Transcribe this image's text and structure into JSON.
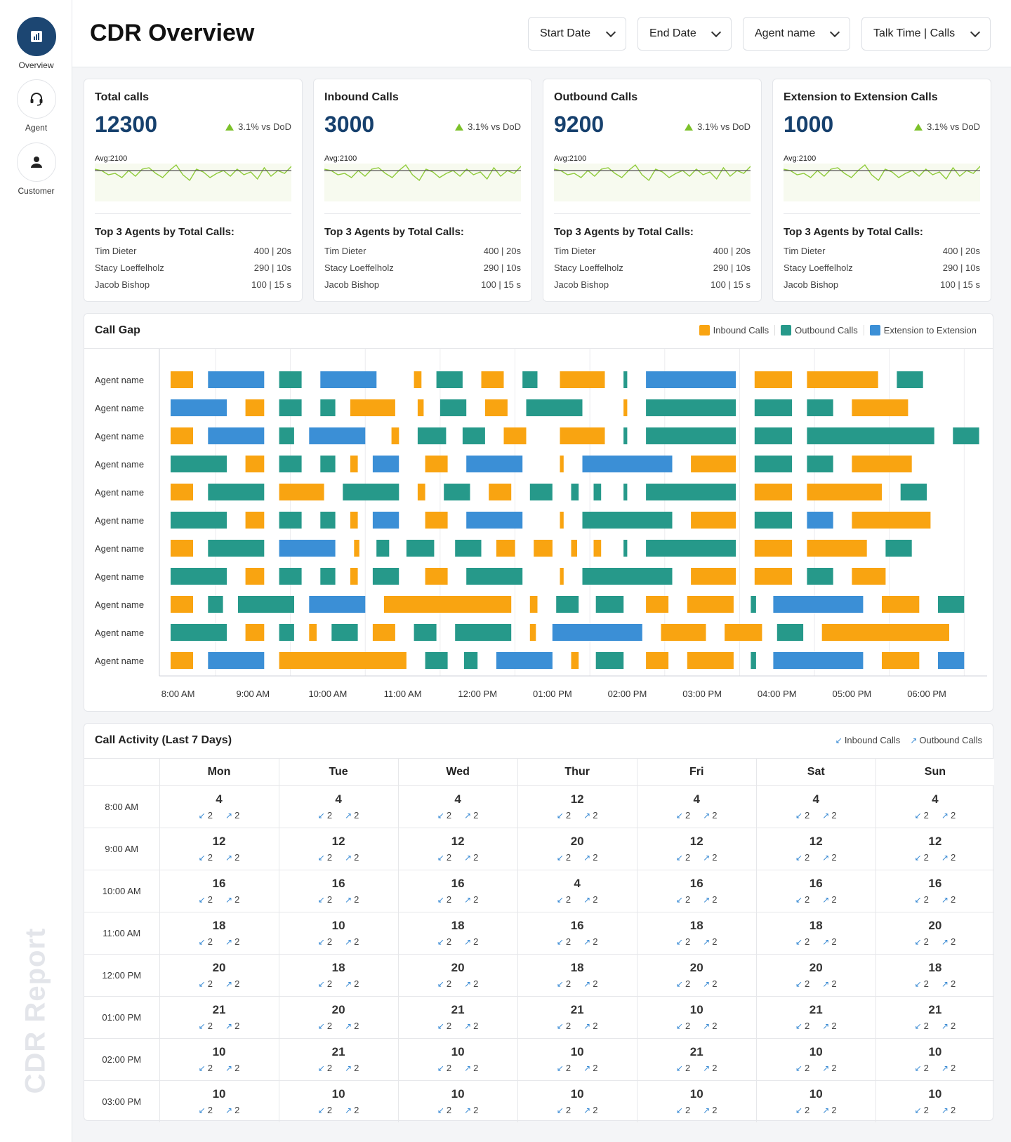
{
  "sidebar": {
    "items": [
      {
        "label": "Overview",
        "icon": "chart-icon",
        "active": true
      },
      {
        "label": "Agent",
        "icon": "headset-icon",
        "active": false
      },
      {
        "label": "Customer",
        "icon": "user-icon",
        "active": false
      }
    ],
    "brand": "CDR Report"
  },
  "header": {
    "title": "CDR Overview",
    "filters": [
      "Start Date",
      "End Date",
      "Agent name",
      "Talk Time | Calls"
    ]
  },
  "kpis": [
    {
      "title": "Total calls",
      "value": "12300",
      "delta": "3.1% vs DoD",
      "avg": "Avg:2100",
      "top3_title": "Top 3 Agents by Total Calls:",
      "agents": [
        {
          "name": "Tim Dieter",
          "stat": "400 | 20s"
        },
        {
          "name": "Stacy Loeffelholz",
          "stat": "290 | 10s"
        },
        {
          "name": "Jacob Bishop",
          "stat": "100 | 15 s"
        }
      ]
    },
    {
      "title": "Inbound Calls",
      "value": "3000",
      "delta": "3.1% vs DoD",
      "avg": "Avg:2100",
      "top3_title": "Top 3 Agents by Total Calls:",
      "agents": [
        {
          "name": "Tim Dieter",
          "stat": "400 | 20s"
        },
        {
          "name": "Stacy Loeffelholz",
          "stat": "290 | 10s"
        },
        {
          "name": "Jacob Bishop",
          "stat": "100 | 15 s"
        }
      ]
    },
    {
      "title": "Outbound Calls",
      "value": "9200",
      "delta": "3.1% vs DoD",
      "avg": "Avg:2100",
      "top3_title": "Top 3 Agents by Total Calls:",
      "agents": [
        {
          "name": "Tim Dieter",
          "stat": "400 | 20s"
        },
        {
          "name": "Stacy Loeffelholz",
          "stat": "290 | 10s"
        },
        {
          "name": "Jacob Bishop",
          "stat": "100 | 15 s"
        }
      ]
    },
    {
      "title": "Extension to Extension Calls",
      "value": "1000",
      "delta": "3.1% vs DoD",
      "avg": "Avg:2100",
      "top3_title": "Top 3 Agents by Total Calls:",
      "agents": [
        {
          "name": "Tim Dieter",
          "stat": "400 | 20s"
        },
        {
          "name": "Stacy Loeffelholz",
          "stat": "290 | 10s"
        },
        {
          "name": "Jacob Bishop",
          "stat": "100 | 15 s"
        }
      ]
    }
  ],
  "colors": {
    "inbound": "#f9a411",
    "outbound": "#26998a",
    "extension": "#3b8fd6",
    "accent": "#16406d",
    "spark": "#8fcb3a"
  },
  "call_gap": {
    "title": "Call Gap",
    "legend": [
      "Inbound Calls",
      "Outbound Calls",
      "Extension to Extension"
    ]
  },
  "chart_data": {
    "type": "gantt",
    "x_ticks": [
      "8:00 AM",
      "9:00 AM",
      "10:00 AM",
      "11:00 AM",
      "12:00 PM",
      "01:00 PM",
      "02:00 PM",
      "03:00 PM",
      "04:00 PM",
      "05:00 PM",
      "06:00 PM"
    ],
    "x_range_hours": [
      7.75,
      18.75
    ],
    "rows": [
      {
        "label": "Agent name",
        "segments": [
          [
            7.9,
            8.2,
            "inbound"
          ],
          [
            8.4,
            9.15,
            "extension"
          ],
          [
            9.35,
            9.65,
            "outbound"
          ],
          [
            9.9,
            10.65,
            "extension"
          ],
          [
            11.15,
            11.25,
            "inbound"
          ],
          [
            11.45,
            11.8,
            "outbound"
          ],
          [
            12.05,
            12.35,
            "inbound"
          ],
          [
            12.6,
            12.8,
            "outbound"
          ],
          [
            13.1,
            13.7,
            "inbound"
          ],
          [
            13.95,
            14.0,
            "outbound"
          ],
          [
            14.25,
            15.45,
            "extension"
          ],
          [
            15.7,
            16.2,
            "inbound"
          ],
          [
            16.4,
            17.35,
            "inbound"
          ],
          [
            17.6,
            17.95,
            "outbound"
          ]
        ]
      },
      {
        "label": "Agent name",
        "segments": [
          [
            7.9,
            8.65,
            "extension"
          ],
          [
            8.9,
            9.15,
            "inbound"
          ],
          [
            9.35,
            9.65,
            "outbound"
          ],
          [
            9.9,
            10.1,
            "outbound"
          ],
          [
            10.3,
            10.9,
            "inbound"
          ],
          [
            11.2,
            11.28,
            "inbound"
          ],
          [
            11.5,
            11.85,
            "outbound"
          ],
          [
            12.1,
            12.4,
            "inbound"
          ],
          [
            12.65,
            13.4,
            "outbound"
          ],
          [
            13.95,
            14.0,
            "inbound"
          ],
          [
            14.25,
            15.45,
            "outbound"
          ],
          [
            15.7,
            16.2,
            "outbound"
          ],
          [
            16.4,
            16.75,
            "outbound"
          ],
          [
            17.0,
            17.75,
            "inbound"
          ]
        ]
      },
      {
        "label": "Agent name",
        "segments": [
          [
            7.9,
            8.2,
            "inbound"
          ],
          [
            8.4,
            9.15,
            "extension"
          ],
          [
            9.35,
            9.55,
            "outbound"
          ],
          [
            9.75,
            10.5,
            "extension"
          ],
          [
            10.85,
            10.95,
            "inbound"
          ],
          [
            11.2,
            11.58,
            "outbound"
          ],
          [
            11.8,
            12.1,
            "outbound"
          ],
          [
            12.35,
            12.65,
            "inbound"
          ],
          [
            13.1,
            13.7,
            "inbound"
          ],
          [
            13.95,
            14.0,
            "outbound"
          ],
          [
            14.25,
            15.45,
            "outbound"
          ],
          [
            15.7,
            16.2,
            "outbound"
          ],
          [
            16.4,
            18.1,
            "outbound"
          ],
          [
            18.35,
            18.7,
            "outbound"
          ]
        ]
      },
      {
        "label": "Agent name",
        "segments": [
          [
            7.9,
            8.65,
            "outbound"
          ],
          [
            8.9,
            9.15,
            "inbound"
          ],
          [
            9.35,
            9.65,
            "outbound"
          ],
          [
            9.9,
            10.1,
            "outbound"
          ],
          [
            10.3,
            10.4,
            "inbound"
          ],
          [
            10.6,
            10.95,
            "extension"
          ],
          [
            11.3,
            11.6,
            "inbound"
          ],
          [
            11.85,
            12.6,
            "extension"
          ],
          [
            13.1,
            13.15,
            "inbound"
          ],
          [
            13.4,
            14.6,
            "extension"
          ],
          [
            14.85,
            15.45,
            "inbound"
          ],
          [
            15.7,
            16.2,
            "outbound"
          ],
          [
            16.4,
            16.75,
            "outbound"
          ],
          [
            17.0,
            17.8,
            "inbound"
          ]
        ]
      },
      {
        "label": "Agent name",
        "segments": [
          [
            7.9,
            8.2,
            "inbound"
          ],
          [
            8.4,
            9.15,
            "outbound"
          ],
          [
            9.35,
            9.95,
            "inbound"
          ],
          [
            10.2,
            10.95,
            "outbound"
          ],
          [
            11.2,
            11.3,
            "inbound"
          ],
          [
            11.55,
            11.9,
            "outbound"
          ],
          [
            12.15,
            12.45,
            "inbound"
          ],
          [
            12.7,
            13.0,
            "outbound"
          ],
          [
            13.25,
            13.35,
            "outbound"
          ],
          [
            13.55,
            13.65,
            "outbound"
          ],
          [
            13.95,
            14.0,
            "outbound"
          ],
          [
            14.25,
            15.45,
            "outbound"
          ],
          [
            15.7,
            16.2,
            "inbound"
          ],
          [
            16.4,
            17.4,
            "inbound"
          ],
          [
            17.65,
            18.0,
            "outbound"
          ]
        ]
      },
      {
        "label": "Agent name",
        "segments": [
          [
            7.9,
            8.65,
            "outbound"
          ],
          [
            8.9,
            9.15,
            "inbound"
          ],
          [
            9.35,
            9.65,
            "outbound"
          ],
          [
            9.9,
            10.1,
            "outbound"
          ],
          [
            10.3,
            10.4,
            "inbound"
          ],
          [
            10.6,
            10.95,
            "extension"
          ],
          [
            11.3,
            11.6,
            "inbound"
          ],
          [
            11.85,
            12.6,
            "extension"
          ],
          [
            13.1,
            13.15,
            "inbound"
          ],
          [
            13.4,
            14.6,
            "outbound"
          ],
          [
            14.85,
            15.45,
            "inbound"
          ],
          [
            15.7,
            16.2,
            "outbound"
          ],
          [
            16.4,
            16.75,
            "extension"
          ],
          [
            17.0,
            18.05,
            "inbound"
          ]
        ]
      },
      {
        "label": "Agent name",
        "segments": [
          [
            7.9,
            8.2,
            "inbound"
          ],
          [
            8.4,
            9.15,
            "outbound"
          ],
          [
            9.35,
            10.1,
            "extension"
          ],
          [
            10.35,
            10.42,
            "inbound"
          ],
          [
            10.65,
            10.82,
            "outbound"
          ],
          [
            11.05,
            11.42,
            "outbound"
          ],
          [
            11.7,
            12.05,
            "outbound"
          ],
          [
            12.25,
            12.5,
            "inbound"
          ],
          [
            12.75,
            13.0,
            "inbound"
          ],
          [
            13.25,
            13.33,
            "inbound"
          ],
          [
            13.55,
            13.65,
            "inbound"
          ],
          [
            13.95,
            14.0,
            "outbound"
          ],
          [
            14.25,
            15.45,
            "outbound"
          ],
          [
            15.7,
            16.2,
            "inbound"
          ],
          [
            16.4,
            17.2,
            "inbound"
          ],
          [
            17.45,
            17.8,
            "outbound"
          ]
        ]
      },
      {
        "label": "Agent name",
        "segments": [
          [
            7.9,
            8.65,
            "outbound"
          ],
          [
            8.9,
            9.15,
            "inbound"
          ],
          [
            9.35,
            9.65,
            "outbound"
          ],
          [
            9.9,
            10.1,
            "outbound"
          ],
          [
            10.3,
            10.4,
            "inbound"
          ],
          [
            10.6,
            10.95,
            "outbound"
          ],
          [
            11.3,
            11.6,
            "inbound"
          ],
          [
            11.85,
            12.6,
            "outbound"
          ],
          [
            13.1,
            13.15,
            "inbound"
          ],
          [
            13.4,
            14.6,
            "outbound"
          ],
          [
            14.85,
            15.45,
            "inbound"
          ],
          [
            15.7,
            16.2,
            "inbound"
          ],
          [
            16.4,
            16.75,
            "outbound"
          ],
          [
            17.0,
            17.45,
            "inbound"
          ]
        ]
      },
      {
        "label": "Agent name",
        "segments": [
          [
            7.9,
            8.2,
            "inbound"
          ],
          [
            8.4,
            8.6,
            "outbound"
          ],
          [
            8.8,
            9.55,
            "outbound"
          ],
          [
            9.75,
            10.5,
            "extension"
          ],
          [
            10.75,
            12.45,
            "inbound"
          ],
          [
            12.7,
            12.8,
            "inbound"
          ],
          [
            13.05,
            13.35,
            "outbound"
          ],
          [
            13.58,
            13.95,
            "outbound"
          ],
          [
            14.25,
            14.55,
            "inbound"
          ],
          [
            14.8,
            15.42,
            "inbound"
          ],
          [
            15.65,
            15.72,
            "outbound"
          ],
          [
            15.95,
            17.15,
            "extension"
          ],
          [
            17.4,
            17.9,
            "inbound"
          ],
          [
            18.15,
            18.5,
            "outbound"
          ]
        ]
      },
      {
        "label": "Agent name",
        "segments": [
          [
            7.9,
            8.65,
            "outbound"
          ],
          [
            8.9,
            9.15,
            "inbound"
          ],
          [
            9.35,
            9.55,
            "outbound"
          ],
          [
            9.75,
            9.85,
            "inbound"
          ],
          [
            10.05,
            10.4,
            "outbound"
          ],
          [
            10.6,
            10.9,
            "inbound"
          ],
          [
            11.15,
            11.45,
            "outbound"
          ],
          [
            11.7,
            12.45,
            "outbound"
          ],
          [
            12.7,
            12.78,
            "inbound"
          ],
          [
            13.0,
            14.2,
            "extension"
          ],
          [
            14.45,
            15.05,
            "inbound"
          ],
          [
            15.3,
            15.8,
            "inbound"
          ],
          [
            16.0,
            16.35,
            "outbound"
          ],
          [
            16.6,
            18.3,
            "inbound"
          ]
        ]
      },
      {
        "label": "Agent name",
        "segments": [
          [
            7.9,
            8.2,
            "inbound"
          ],
          [
            8.4,
            9.15,
            "extension"
          ],
          [
            9.35,
            11.05,
            "inbound"
          ],
          [
            11.3,
            11.6,
            "outbound"
          ],
          [
            11.82,
            12.0,
            "outbound"
          ],
          [
            12.25,
            13.0,
            "extension"
          ],
          [
            13.25,
            13.35,
            "inbound"
          ],
          [
            13.58,
            13.95,
            "outbound"
          ],
          [
            14.25,
            14.55,
            "inbound"
          ],
          [
            14.8,
            15.42,
            "inbound"
          ],
          [
            15.65,
            15.72,
            "outbound"
          ],
          [
            15.95,
            17.15,
            "extension"
          ],
          [
            17.4,
            17.9,
            "inbound"
          ],
          [
            18.15,
            18.5,
            "extension"
          ]
        ]
      }
    ]
  },
  "activity": {
    "title": "Call Activity (Last 7 Days)",
    "legend": [
      "Inbound Calls",
      "Outbound Calls"
    ],
    "days": [
      "Mon",
      "Tue",
      "Wed",
      "Thur",
      "Fri",
      "Sat",
      "Sun"
    ],
    "rows": [
      {
        "time": "8:00 AM",
        "totals": [
          "4",
          "4",
          "4",
          "12",
          "4",
          "4",
          "4"
        ]
      },
      {
        "time": "9:00 AM",
        "totals": [
          "12",
          "12",
          "12",
          "20",
          "12",
          "12",
          "12"
        ]
      },
      {
        "time": "10:00 AM",
        "totals": [
          "16",
          "16",
          "16",
          "4",
          "16",
          "16",
          "16"
        ]
      },
      {
        "time": "11:00 AM",
        "totals": [
          "18",
          "10",
          "18",
          "16",
          "18",
          "18",
          "20"
        ]
      },
      {
        "time": "12:00 PM",
        "totals": [
          "20",
          "18",
          "20",
          "18",
          "20",
          "20",
          "18"
        ]
      },
      {
        "time": "01:00 PM",
        "totals": [
          "21",
          "20",
          "21",
          "21",
          "10",
          "21",
          "21"
        ]
      },
      {
        "time": "02:00 PM",
        "totals": [
          "10",
          "21",
          "10",
          "10",
          "21",
          "10",
          "10"
        ]
      },
      {
        "time": "03:00 PM",
        "totals": [
          "10",
          "10",
          "10",
          "10",
          "10",
          "10",
          "10"
        ]
      }
    ],
    "inbound": "2",
    "outbound": "2"
  }
}
